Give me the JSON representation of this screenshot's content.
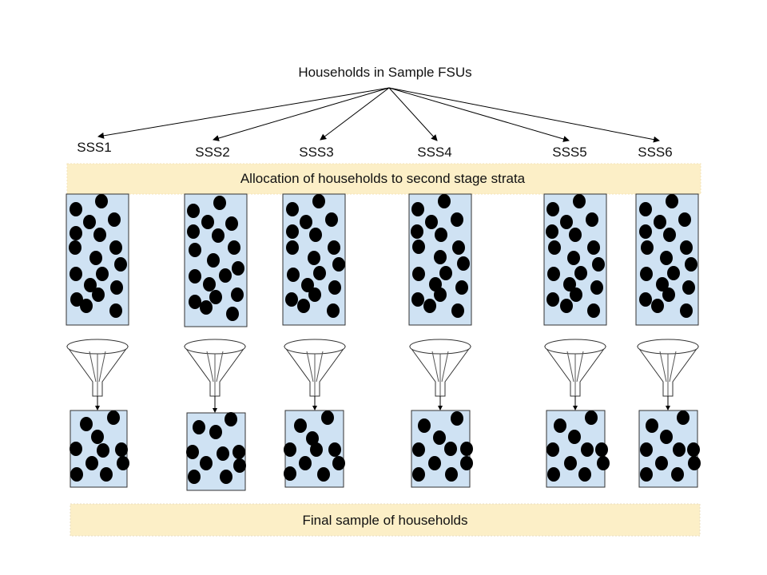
{
  "title": "Households in Sample FSUs",
  "strata": [
    {
      "label": "SSS1"
    },
    {
      "label": "SSS2"
    },
    {
      "label": "SSS3"
    },
    {
      "label": "SSS4"
    },
    {
      "label": "SSS5"
    },
    {
      "label": "SSS6"
    }
  ],
  "allocation_banner": "Allocation of households to second stage strata",
  "final_banner": "Final sample of households",
  "colors": {
    "banner_fill": "#fcefc7",
    "box_fill": "#cfe2f3",
    "box_stroke": "#333333",
    "dot": "#000000",
    "funnel_fill": "#ffffff",
    "line": "#000000"
  }
}
